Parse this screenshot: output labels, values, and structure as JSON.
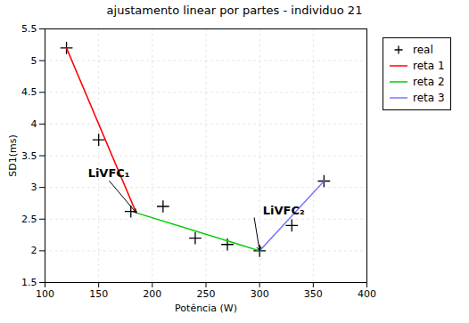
{
  "chart_data": {
    "type": "line",
    "title": "ajustamento linear por partes - individuo 21",
    "xlabel": "Potência (W)",
    "ylabel": "SD1(ms)",
    "xlim": [
      100,
      400
    ],
    "ylim": [
      1.5,
      5.5
    ],
    "xticks": [
      100,
      150,
      200,
      250,
      300,
      350,
      400
    ],
    "yticks": [
      1.5,
      2,
      2.5,
      3,
      3.5,
      4,
      4.5,
      5,
      5.5
    ],
    "grid": true,
    "legend": "right",
    "series": [
      {
        "name": "real",
        "type": "scatter",
        "marker": "plus",
        "color": "#000000",
        "x": [
          120,
          150,
          180,
          210,
          240,
          270,
          300,
          330,
          360
        ],
        "values": [
          5.2,
          3.75,
          2.62,
          2.7,
          2.2,
          2.1,
          2.0,
          2.4,
          3.1
        ]
      },
      {
        "name": "reta 1",
        "type": "line",
        "color": "#ff0000",
        "x": [
          120,
          185
        ],
        "values": [
          5.2,
          2.6
        ]
      },
      {
        "name": "reta 2",
        "type": "line",
        "color": "#00cc00",
        "x": [
          185,
          300
        ],
        "values": [
          2.6,
          2.0
        ]
      },
      {
        "name": "reta 3",
        "type": "line",
        "color": "#7777ff",
        "x": [
          300,
          360
        ],
        "values": [
          2.0,
          3.1
        ]
      }
    ],
    "annotations": [
      {
        "text": "LiVFC₁",
        "x": 140,
        "y": 3.17,
        "arrow_from": [
          160,
          3.1
        ],
        "arrow_to": [
          185,
          2.6
        ]
      },
      {
        "text": "LiVFC₂",
        "x": 303,
        "y": 2.58,
        "arrow_from": [
          295,
          2.52
        ],
        "arrow_to": [
          300,
          2.0
        ]
      }
    ]
  }
}
